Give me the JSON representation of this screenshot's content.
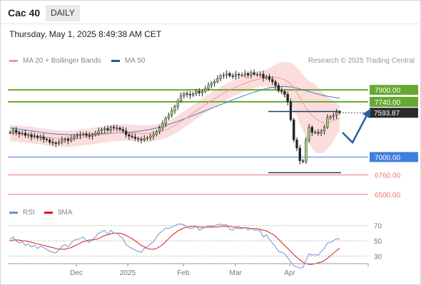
{
  "header": {
    "ticker": "Cac 40",
    "period": "DAILY",
    "datetime": "Thursday, May 1, 2025 8:49:38 AM CET"
  },
  "legend": {
    "ma20": "MA 20 + Bollinger Bands",
    "ma50": "MA 50",
    "research": "Research © 2025 Trading Central",
    "rsi": "RSI",
    "ma9": "9MA"
  },
  "colors": {
    "resistance": "#66a832",
    "support": "#3f7de0",
    "bollinger": "#f8c7c7",
    "ma20": "#f29a9a",
    "ma50": "#4f79b5",
    "rsi": "#6f90d8",
    "ma9": "#e01515",
    "target": "#ee7777",
    "arrow": "#2a5fa0",
    "price_label": "#2b2b2b"
  },
  "chart_data": [
    {
      "type": "candlestick",
      "x_labels": [
        "Dec",
        "2025",
        "Feb",
        "Mar",
        "Apr"
      ],
      "ylim": [
        6450,
        8150
      ],
      "last_price": "7593.87",
      "levels": [
        {
          "label": "7900.00",
          "value": 7900,
          "kind": "resistance"
        },
        {
          "label": "7740.00",
          "value": 7740,
          "kind": "resistance"
        },
        {
          "label": "7000.00",
          "value": 7000,
          "kind": "pivot"
        },
        {
          "label": "6760.00",
          "value": 6760,
          "kind": "support"
        },
        {
          "label": "6500.00",
          "value": 6500,
          "kind": "support"
        }
      ],
      "close_series": [
        7330,
        7360,
        7330,
        7310,
        7320,
        7290,
        7300,
        7270,
        7280,
        7260,
        7270,
        7240,
        7230,
        7200,
        7190,
        7180,
        7200,
        7230,
        7240,
        7220,
        7250,
        7280,
        7290,
        7300,
        7310,
        7290,
        7280,
        7300,
        7320,
        7350,
        7370,
        7380,
        7360,
        7400,
        7390,
        7390,
        7370,
        7350,
        7300,
        7280,
        7270,
        7250,
        7240,
        7230,
        7250,
        7260,
        7280,
        7300,
        7340,
        7390,
        7450,
        7520,
        7560,
        7620,
        7680,
        7750,
        7820,
        7850,
        7840,
        7830,
        7850,
        7880,
        7860,
        7880,
        7920,
        7960,
        7990,
        8010,
        8050,
        8090,
        8100,
        8120,
        8090,
        8080,
        8110,
        8100,
        8100,
        8120,
        8100,
        8130,
        8110,
        8110,
        8110,
        8060,
        8080,
        8040,
        8010,
        7960,
        7890,
        7880,
        7840,
        7740,
        7500,
        7230,
        7120,
        6950,
        6940,
        7230,
        7400,
        7330,
        7330,
        7320,
        7350,
        7400,
        7530,
        7540,
        7560,
        7600,
        7594
      ],
      "ma20": [
        7320,
        7318,
        7315,
        7312,
        7308,
        7304,
        7300,
        7295,
        7290,
        7284,
        7278,
        7272,
        7266,
        7260,
        7255,
        7250,
        7248,
        7246,
        7245,
        7245,
        7247,
        7250,
        7254,
        7259,
        7265,
        7270,
        7276,
        7282,
        7288,
        7294,
        7300,
        7305,
        7310,
        7315,
        7320,
        7323,
        7325,
        7326,
        7326,
        7325,
        7323,
        7320,
        7318,
        7316,
        7315,
        7315,
        7318,
        7323,
        7331,
        7341,
        7352,
        7365,
        7380,
        7400,
        7422,
        7448,
        7475,
        7502,
        7530,
        7558,
        7588,
        7618,
        7647,
        7675,
        7702,
        7730,
        7757,
        7783,
        7808,
        7832,
        7855,
        7877,
        7898,
        7918,
        7937,
        7955,
        7972,
        7988,
        8003,
        8017,
        8030,
        8041,
        8050,
        8057,
        8062,
        8065,
        8066,
        8064,
        8060,
        8050,
        8035,
        8012,
        7978,
        7930,
        7870,
        7800,
        7730,
        7660,
        7600,
        7560,
        7520,
        7490,
        7470,
        7460,
        7460,
        7470,
        7485,
        7505,
        7520
      ],
      "ma50": [
        7390,
        7385,
        7380,
        7374,
        7368,
        7362,
        7356,
        7350,
        7344,
        7338,
        7332,
        7327,
        7322,
        7317,
        7313,
        7309,
        7306,
        7304,
        7302,
        7301,
        7300,
        7300,
        7300,
        7301,
        7302,
        7304,
        7306,
        7308,
        7310,
        7312,
        7314,
        7316,
        7318,
        7320,
        7322,
        7324,
        7326,
        7328,
        7330,
        7333,
        7336,
        7340,
        7345,
        7350,
        7356,
        7363,
        7371,
        7380,
        7390,
        7401,
        7413,
        7425,
        7438,
        7451,
        7465,
        7480,
        7495,
        7510,
        7526,
        7542,
        7558,
        7574,
        7590,
        7606,
        7622,
        7638,
        7654,
        7670,
        7686,
        7702,
        7718,
        7734,
        7750,
        7766,
        7782,
        7797,
        7812,
        7827,
        7842,
        7856,
        7870,
        7883,
        7896,
        7908,
        7918,
        7927,
        7934,
        7940,
        7944,
        7946,
        7946,
        7944,
        7940,
        7933,
        7924,
        7913,
        7901,
        7889,
        7877,
        7865,
        7853,
        7842,
        7832,
        7823,
        7815,
        7808,
        7801,
        7795,
        7790
      ]
    },
    {
      "type": "line",
      "title": "RSI",
      "yticks": [
        30,
        50,
        70
      ],
      "ylim": [
        20,
        80
      ],
      "series": [
        {
          "name": "RSI",
          "values": [
            52,
            55,
            50,
            47,
            49,
            44,
            46,
            42,
            44,
            40,
            43,
            41,
            39,
            36,
            35,
            34,
            38,
            43,
            45,
            42,
            47,
            51,
            52,
            53,
            55,
            50,
            48,
            52,
            55,
            60,
            62,
            64,
            58,
            64,
            60,
            60,
            56,
            53,
            45,
            42,
            40,
            38,
            36,
            35,
            40,
            42,
            46,
            49,
            55,
            60,
            63,
            67,
            66,
            68,
            70,
            72,
            72,
            71,
            68,
            66,
            67,
            69,
            64,
            66,
            68,
            70,
            69,
            70,
            71,
            72,
            71,
            71,
            65,
            64,
            67,
            66,
            66,
            68,
            64,
            67,
            64,
            64,
            63,
            55,
            58,
            52,
            47,
            42,
            36,
            35,
            33,
            28,
            22,
            17,
            16,
            14,
            15,
            24,
            33,
            31,
            32,
            31,
            36,
            40,
            47,
            48,
            50,
            53,
            52
          ]
        },
        {
          "name": "9MA",
          "values": [
            50,
            51,
            51,
            51,
            50,
            50,
            49,
            48,
            47,
            46,
            45,
            44,
            43,
            42,
            41,
            40,
            39,
            39,
            39,
            40,
            41,
            43,
            45,
            47,
            49,
            50,
            51,
            51,
            52,
            53,
            55,
            57,
            58,
            59,
            60,
            60,
            60,
            59,
            57,
            55,
            53,
            50,
            47,
            44,
            42,
            40,
            39,
            39,
            40,
            42,
            45,
            49,
            53,
            57,
            60,
            63,
            65,
            67,
            68,
            69,
            69,
            69,
            68,
            68,
            68,
            68,
            68,
            68,
            68,
            69,
            69,
            69,
            69,
            68,
            68,
            68,
            67,
            67,
            67,
            66,
            66,
            66,
            65,
            64,
            63,
            61,
            59,
            56,
            52,
            48,
            44,
            40,
            36,
            32,
            28,
            25,
            22,
            20,
            19,
            19,
            20,
            21,
            22,
            24,
            27,
            30,
            34,
            37,
            40
          ]
        }
      ]
    }
  ]
}
